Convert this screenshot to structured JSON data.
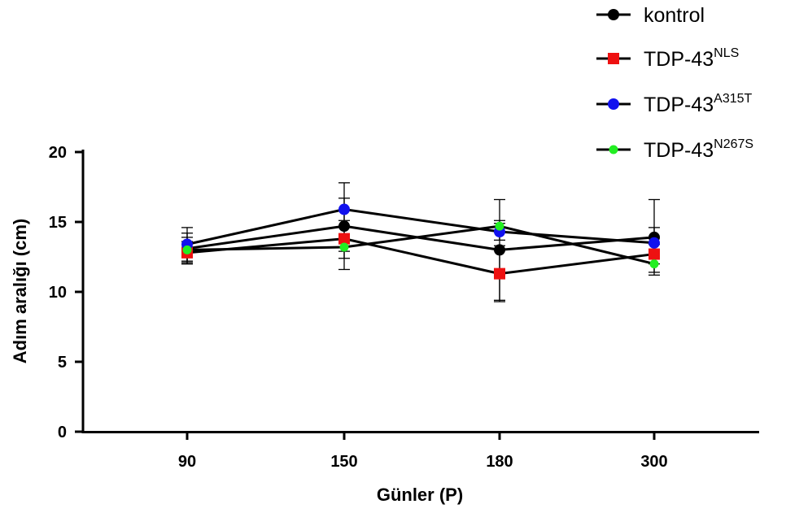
{
  "chart_data": {
    "type": "line",
    "title": "",
    "xlabel": "Günler (P)",
    "ylabel": "Adım aralığı (cm)",
    "categories": [
      "90",
      "150",
      "180",
      "300"
    ],
    "ylim": [
      0,
      20
    ],
    "yticks": [
      "0",
      "5",
      "10",
      "15",
      "20"
    ],
    "grid": false,
    "legend_position": "top-right",
    "series": [
      {
        "name": "kontrol",
        "name_base": "kontrol",
        "name_sup": "",
        "color": "#000000",
        "marker": "circle",
        "values": [
          13.1,
          14.7,
          13.0,
          13.9
        ],
        "error": [
          1.1,
          3.1,
          3.6,
          2.7
        ]
      },
      {
        "name": "TDP-43NLS",
        "name_base": "TDP-43",
        "name_sup": "NLS",
        "color": "#ee1111",
        "marker": "square",
        "values": [
          12.8,
          13.8,
          11.3,
          12.7
        ],
        "error": [
          0.8,
          0.9,
          2.0,
          0.7
        ]
      },
      {
        "name": "TDP-43A315T",
        "name_base": "TDP-43",
        "name_sup": "A315T",
        "color": "#1111ee",
        "marker": "circle",
        "values": [
          13.4,
          15.9,
          14.3,
          13.5
        ],
        "error": [
          1.2,
          0.8,
          0.6,
          1.1
        ]
      },
      {
        "name": "TDP-43N267S",
        "name_base": "TDP-43",
        "name_sup": "N267S",
        "color": "#22ee22",
        "marker": "circle-small",
        "values": [
          13.0,
          13.2,
          14.7,
          12.0
        ],
        "error": [
          0.9,
          0.8,
          0.4,
          0.6
        ]
      }
    ]
  }
}
